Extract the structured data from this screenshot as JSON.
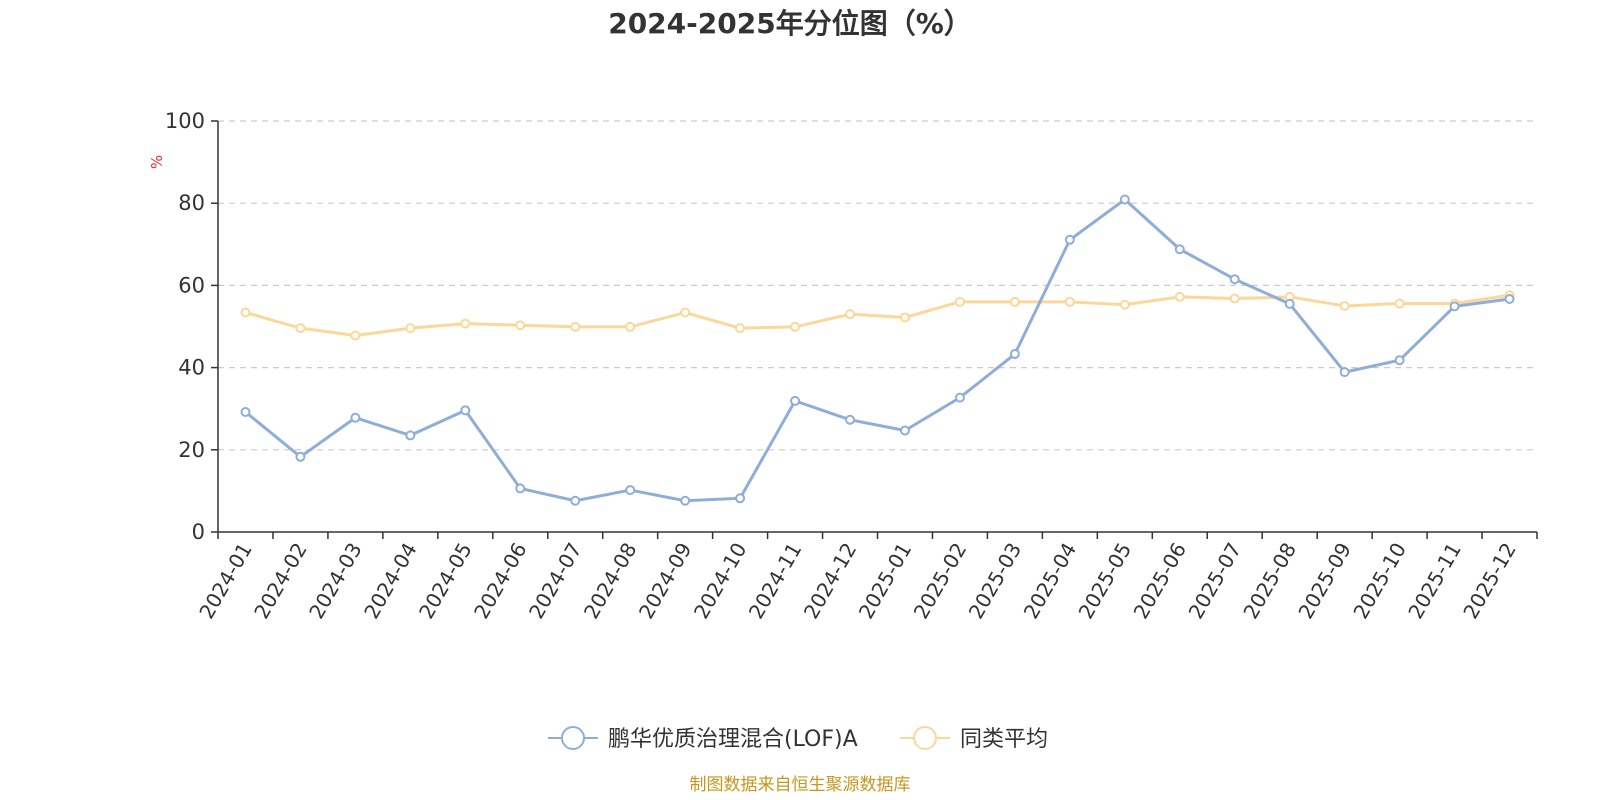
{
  "chart_data": {
    "type": "line",
    "title": "2024-2025年分位图（%）",
    "ylabel": "%",
    "ylim": [
      0,
      100
    ],
    "yticks": [
      "0",
      "20",
      "40",
      "60",
      "80",
      "100"
    ],
    "grid": true,
    "legend_position": "bottom",
    "categories": [
      "2024-01",
      "2024-02",
      "2024-03",
      "2024-04",
      "2024-05",
      "2024-06",
      "2024-07",
      "2024-08",
      "2024-09",
      "2024-10",
      "2024-11",
      "2024-12",
      "2025-01",
      "2025-02",
      "2025-03",
      "2025-04",
      "2025-05",
      "2025-06",
      "2025-07",
      "2025-08",
      "2025-09",
      "2025-10",
      "2025-11",
      "2025-12"
    ],
    "series": [
      {
        "name": "鹏华优质治理混合(LOF)A",
        "color": "#8eaed9",
        "values": [
          29.2,
          18.3,
          27.8,
          23.5,
          29.6,
          10.6,
          7.6,
          10.2,
          7.6,
          8.2,
          31.9,
          27.3,
          24.7,
          32.7,
          43.3,
          71.1,
          80.9,
          68.8,
          61.5,
          55.5,
          38.9,
          41.8,
          54.9,
          56.7
        ]
      },
      {
        "name": "同类平均",
        "color": "#fbd89a",
        "values": [
          53.4,
          49.6,
          47.8,
          49.6,
          50.7,
          50.3,
          49.9,
          49.9,
          53.4,
          49.6,
          49.9,
          53.0,
          52.2,
          56.0,
          56.0,
          56.0,
          55.3,
          57.2,
          56.8,
          57.2,
          55.0,
          55.6,
          55.6,
          57.6
        ]
      }
    ]
  },
  "source": "制图数据来自恒生聚源数据库"
}
